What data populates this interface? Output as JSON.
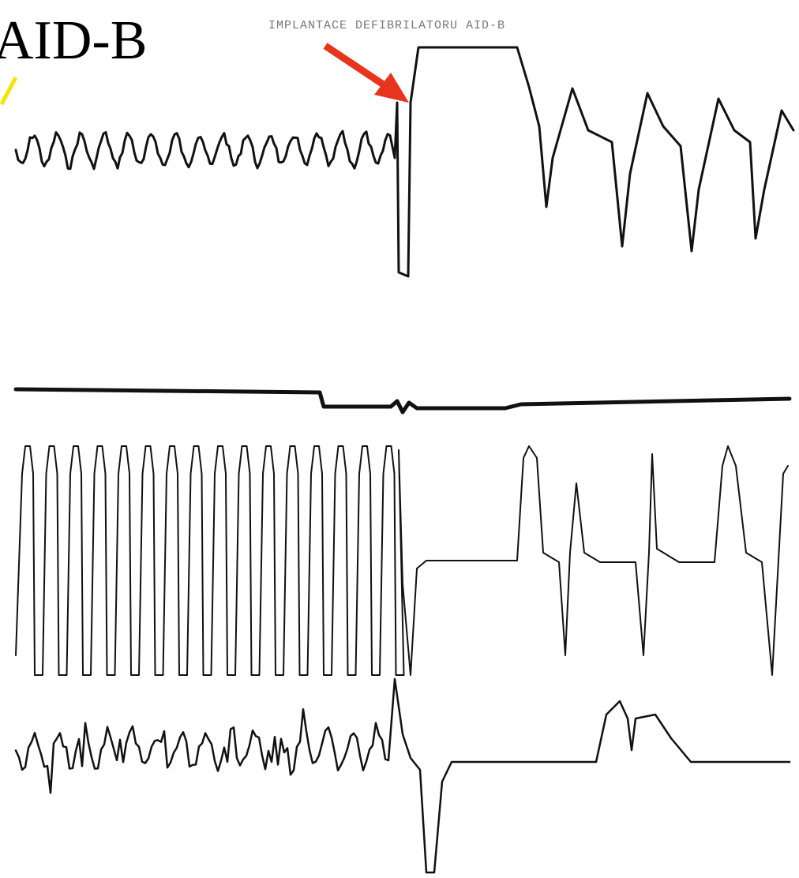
{
  "label": "AID-B",
  "header": "IMPLANTACE DEFIBRILATORU AID-B"
}
